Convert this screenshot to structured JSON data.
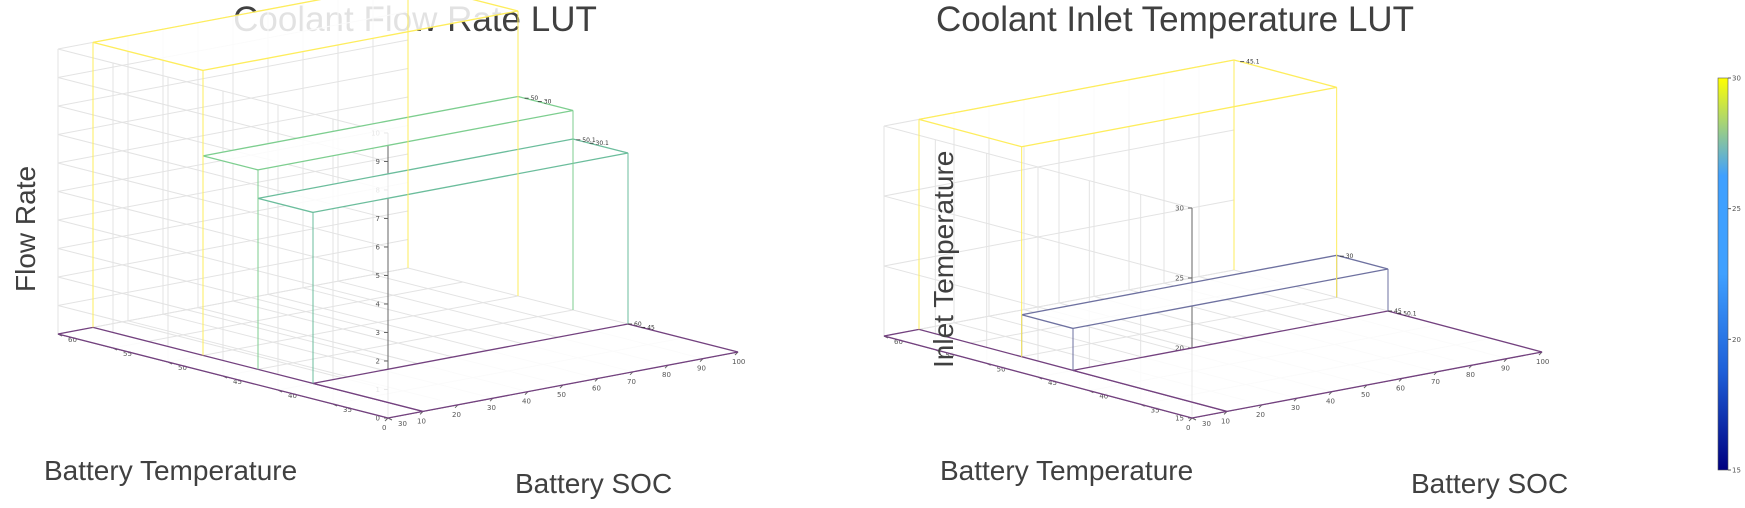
{
  "chart_data": [
    {
      "type": "surface",
      "title": "Coolant Flow Rate LUT",
      "xlabel": "Battery SOC",
      "ylabel": "Battery Temperature",
      "zlabel": "Flow Rate",
      "xlim": [
        0,
        100
      ],
      "ylim": [
        30,
        60
      ],
      "zlim": [
        0,
        10
      ],
      "xticks": [
        "0",
        "10",
        "20",
        "30",
        "40",
        "50",
        "60",
        "70",
        "80",
        "90",
        "100"
      ],
      "yticks": [
        "30",
        "35",
        "40",
        "45",
        "50",
        "55",
        "60"
      ],
      "zticks": [
        "0",
        "1",
        "2",
        "3",
        "4",
        "5",
        "6",
        "7",
        "8",
        "9",
        "10"
      ],
      "grid": true,
      "surface_steps": [
        {
          "soc_range": [
            0,
            10
          ],
          "temp_range": [
            30,
            60
          ],
          "value": 0
        },
        {
          "soc_range": [
            10,
            100
          ],
          "temp_range": [
            30,
            40
          ],
          "value": 0
        },
        {
          "soc_range": [
            10,
            100
          ],
          "temp_range": [
            40,
            45
          ],
          "value": 6
        },
        {
          "soc_range": [
            10,
            100
          ],
          "temp_range": [
            45,
            50
          ],
          "value": 7
        },
        {
          "soc_range": [
            10,
            100
          ],
          "temp_range": [
            50,
            60
          ],
          "value": 10
        }
      ],
      "data_labels": [
        "60",
        "50.1",
        "50",
        "45.1",
        "45",
        "30.1",
        "30"
      ]
    },
    {
      "type": "surface",
      "title": "Coolant Inlet Temperature LUT",
      "xlabel": "Battery SOC",
      "ylabel": "Battery Temperature",
      "zlabel": "Inlet Temperature",
      "xlim": [
        0,
        100
      ],
      "ylim": [
        30,
        60
      ],
      "zlim": [
        15,
        30
      ],
      "xticks": [
        "0",
        "10",
        "20",
        "30",
        "40",
        "50",
        "60",
        "70",
        "80",
        "90",
        "100"
      ],
      "yticks": [
        "30",
        "35",
        "40",
        "45",
        "50",
        "55",
        "60"
      ],
      "zticks": [
        "15",
        "20",
        "25",
        "30"
      ],
      "colorbar_ticks": [
        "15",
        "20",
        "25",
        "30"
      ],
      "grid": true,
      "surface_steps": [
        {
          "soc_range": [
            0,
            10
          ],
          "temp_range": [
            30,
            60
          ],
          "value": 15
        },
        {
          "soc_range": [
            10,
            100
          ],
          "temp_range": [
            30,
            45
          ],
          "value": 15
        },
        {
          "soc_range": [
            10,
            100
          ],
          "temp_range": [
            45,
            50
          ],
          "value": 18
        },
        {
          "soc_range": [
            10,
            100
          ],
          "temp_range": [
            50,
            60
          ],
          "value": 30
        }
      ],
      "data_labels": [
        "45",
        "30",
        "45.1",
        "50.1"
      ]
    }
  ]
}
